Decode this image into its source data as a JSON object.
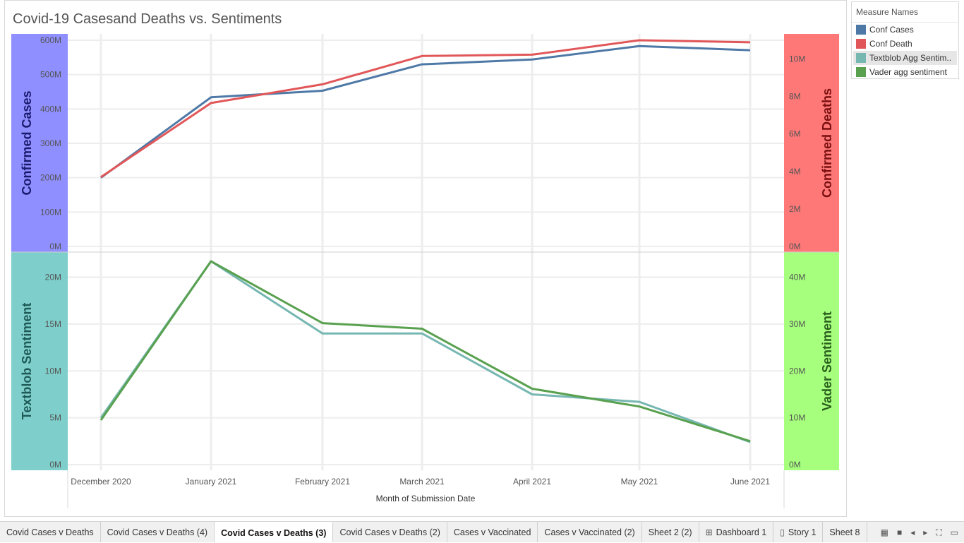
{
  "title": "Covid-19 Casesand Deaths vs. Sentiments",
  "legend": {
    "title": "Measure Names",
    "items": [
      {
        "label": "Conf Cases",
        "color": "#4e79a7"
      },
      {
        "label": "Conf Death",
        "color": "#e15759"
      },
      {
        "label": "Textblob Agg Sentim..",
        "color": "#76b7b2",
        "highlighted": true
      },
      {
        "label": "Vader agg sentiment",
        "color": "#59a14f"
      }
    ]
  },
  "chart_data": {
    "type": "line",
    "x_label": "Month of Submission Date",
    "categories": [
      "December 2020",
      "January 2021",
      "February 2021",
      "March 2021",
      "April 2021",
      "May 2021",
      "June 2021"
    ],
    "panels": [
      {
        "left_axis": {
          "label": "Confirmed Cases",
          "ticks": [
            "0M",
            "100M",
            "200M",
            "300M",
            "400M",
            "500M",
            "600M"
          ],
          "range": [
            0,
            600
          ],
          "band_color": "#8f8fff"
        },
        "right_axis": {
          "label": "Confirmed Deaths",
          "ticks": [
            "0M",
            "2M",
            "4M",
            "6M",
            "8M",
            "10M"
          ],
          "range": [
            0,
            11
          ],
          "band_color": "#ff7878"
        },
        "series": [
          {
            "name": "Conf Cases",
            "axis": "left",
            "color": "#4e79a7",
            "values": [
              200,
              434,
              453,
              530,
              544,
              583,
              571
            ]
          },
          {
            "name": "Conf Death",
            "axis": "right",
            "color": "#e15759",
            "values": [
              3.7,
              7.65,
              8.65,
              10.16,
              10.23,
              11.0,
              10.89
            ]
          }
        ]
      },
      {
        "left_axis": {
          "label": "Textblob Sentiment",
          "ticks": [
            "0M",
            "5M",
            "10M",
            "15M",
            "20M"
          ],
          "range": [
            0,
            22
          ],
          "band_color": "#7ecfcb"
        },
        "right_axis": {
          "label": "Vader Sentiment",
          "ticks": [
            "0M",
            "10M",
            "20M",
            "30M",
            "40M"
          ],
          "range": [
            0,
            44
          ],
          "band_color": "#a6ff7d"
        },
        "series": [
          {
            "name": "Textblob Agg Sentiment",
            "axis": "left",
            "color": "#76b7b2",
            "values": [
              5.0,
              21.7,
              14.0,
              14.0,
              7.5,
              6.7,
              2.4
            ]
          },
          {
            "name": "Vader agg sentiment",
            "axis": "right",
            "color": "#59a14f",
            "values": [
              9.5,
              43.4,
              30.2,
              29.0,
              16.2,
              12.4,
              5.0
            ]
          }
        ]
      }
    ],
    "grid": true
  },
  "tabs": [
    {
      "label": "Covid Cases v Deaths",
      "active": false,
      "icon": ""
    },
    {
      "label": "Covid Cases v Deaths (4)",
      "active": false,
      "icon": ""
    },
    {
      "label": "Covid Cases v Deaths (3)",
      "active": true,
      "icon": ""
    },
    {
      "label": "Covid Cases v Deaths (2)",
      "active": false,
      "icon": ""
    },
    {
      "label": "Cases v Vaccinated",
      "active": false,
      "icon": ""
    },
    {
      "label": "Cases v Vaccinated (2)",
      "active": false,
      "icon": ""
    },
    {
      "label": "Sheet 2 (2)",
      "active": false,
      "icon": ""
    },
    {
      "label": "Dashboard 1",
      "active": false,
      "icon": "⊞"
    },
    {
      "label": "Story 1",
      "active": false,
      "icon": "▯"
    },
    {
      "label": "Sheet 8",
      "active": false,
      "icon": ""
    }
  ],
  "tab_controls": [
    {
      "name": "show-filmstrip-icon",
      "glyph": "▦"
    },
    {
      "name": "show-tabs-icon",
      "glyph": "■"
    },
    {
      "name": "prev-sheet-icon",
      "glyph": "◂"
    },
    {
      "name": "next-sheet-icon",
      "glyph": "▸"
    },
    {
      "name": "fullscreen-icon",
      "glyph": "⛶"
    },
    {
      "name": "presentation-mode-icon",
      "glyph": "▭"
    }
  ]
}
